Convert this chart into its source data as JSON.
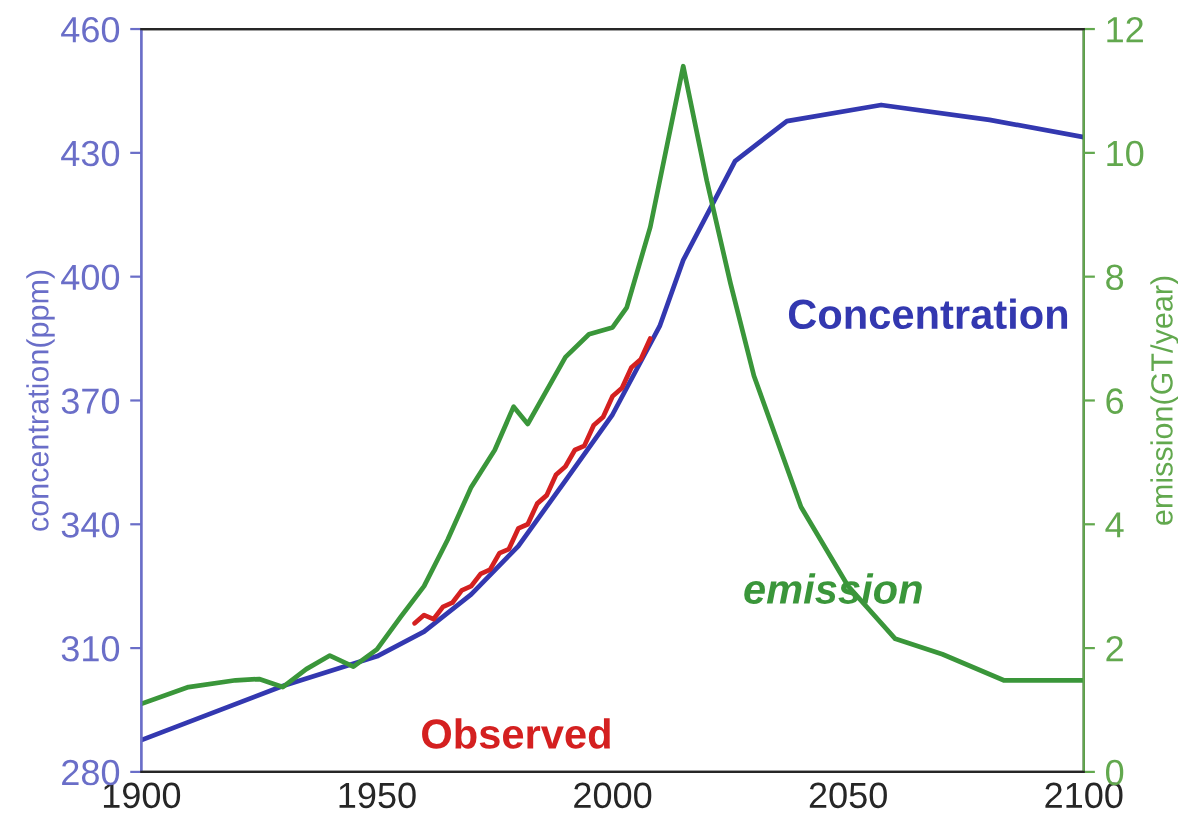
{
  "chart_data": {
    "type": "line",
    "ylabel": "concentration(ppm)",
    "y2label": "emission(GT/year)",
    "xlim": [
      1900,
      2100
    ],
    "xticks": [
      1900,
      1950,
      2000,
      2050,
      2100
    ],
    "ylim": [
      280,
      460
    ],
    "yticks": [
      280,
      310,
      340,
      370,
      400,
      430,
      460
    ],
    "y2lim": [
      0,
      12
    ],
    "y2ticks": [
      0,
      2,
      4,
      6,
      8,
      10,
      12
    ],
    "grid": false,
    "legend": false,
    "series": [
      {
        "name": "Concentration",
        "color": "#3338b0",
        "x": [
          1900,
          1930,
          1950,
          1960,
          1970,
          1980,
          1990,
          2000,
          2010,
          2015,
          2026,
          2037,
          2057,
          2080,
          2100
        ],
        "values": [
          287.7,
          300.8,
          308,
          314,
          323,
          334.7,
          350.6,
          366.6,
          388,
          404,
          428,
          437.7,
          441.6,
          438,
          433.8
        ]
      },
      {
        "name": "emission",
        "color": "#3a963a",
        "axis": "y2",
        "x": [
          1900,
          1910,
          1920,
          1925,
          1930,
          1935,
          1940,
          1945,
          1950,
          1955,
          1960,
          1965,
          1970,
          1975,
          1979,
          1982,
          1990,
          1995,
          2000,
          2003,
          2008,
          2015,
          2020,
          2025,
          2030,
          2040,
          2050,
          2060,
          2070,
          2083,
          2100
        ],
        "values": [
          1.1,
          1.37,
          1.48,
          1.5,
          1.37,
          1.66,
          1.88,
          1.7,
          1.98,
          2.5,
          3.0,
          3.75,
          4.6,
          5.2,
          5.9,
          5.62,
          6.7,
          7.07,
          7.18,
          7.5,
          8.8,
          11.4,
          9.55,
          7.9,
          6.4,
          4.28,
          3.0,
          2.15,
          1.9,
          1.48,
          1.48
        ]
      },
      {
        "name": "Observed",
        "color": "#d42020",
        "x": [
          1958,
          1960,
          1962,
          1964,
          1966,
          1968,
          1970,
          1972,
          1974,
          1976,
          1978,
          1980,
          1982,
          1984,
          1986,
          1988,
          1990,
          1992,
          1994,
          1996,
          1998,
          2000,
          2002,
          2004,
          2006,
          2008
        ],
        "values": [
          316,
          318,
          317,
          320,
          321,
          324,
          325,
          328,
          329,
          333,
          334,
          339,
          340,
          345,
          347,
          352,
          354,
          358,
          359,
          364,
          366,
          371,
          373,
          378,
          380,
          385
        ]
      }
    ]
  }
}
